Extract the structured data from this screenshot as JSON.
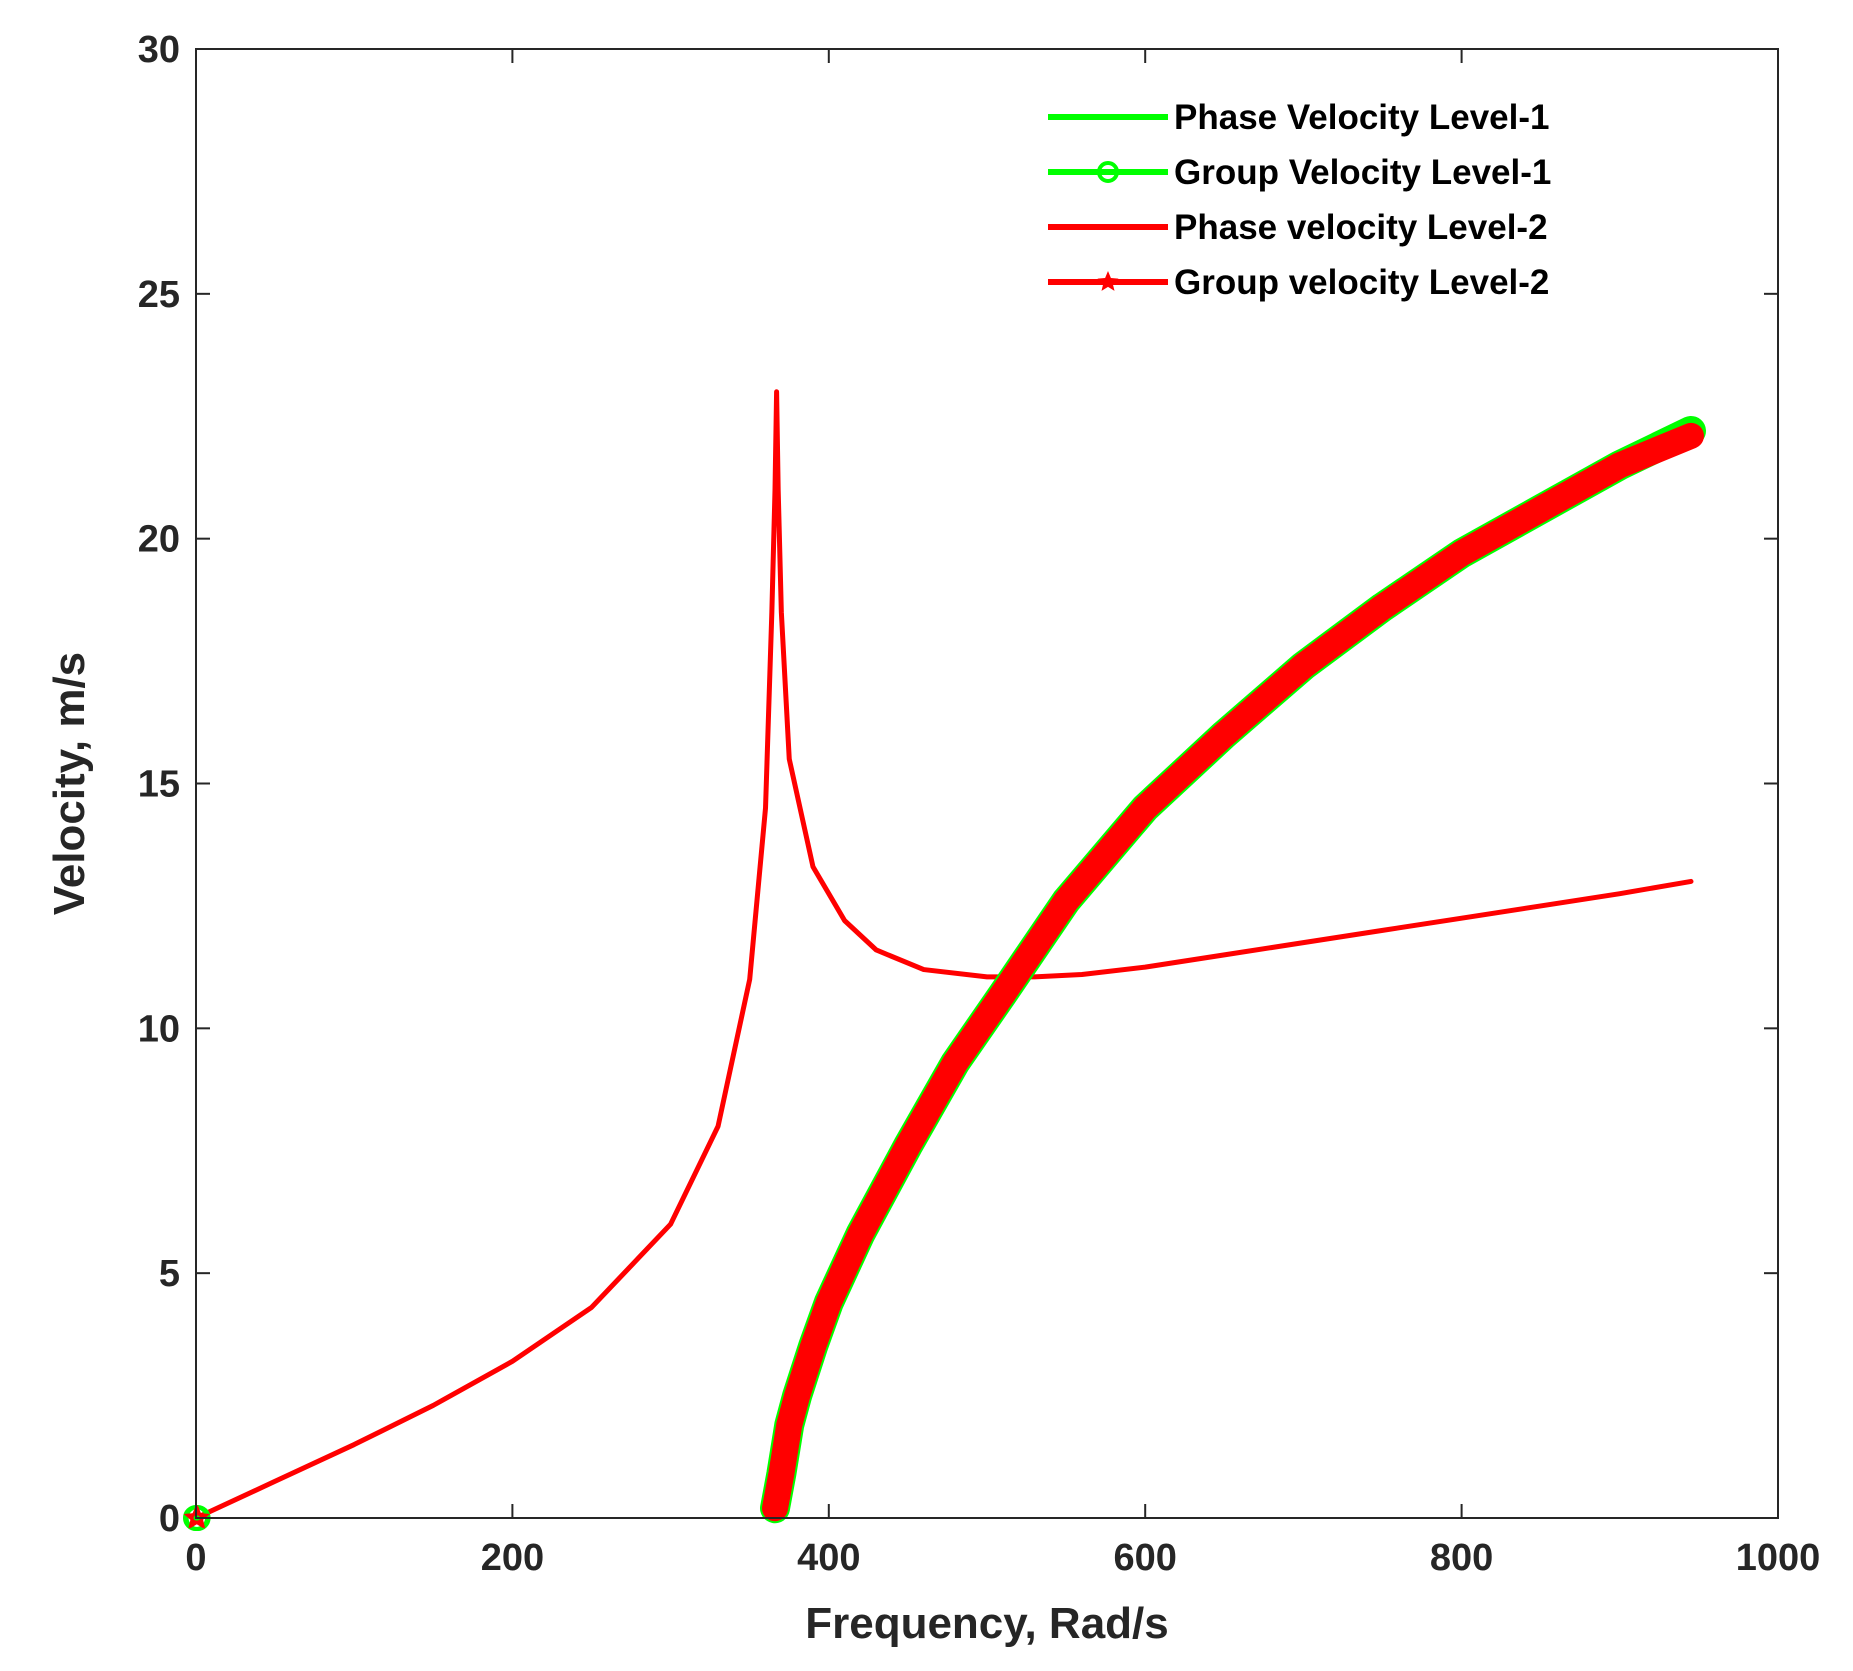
{
  "chart_data": {
    "type": "line",
    "title": "",
    "xlabel": "Frequency, Rad/s",
    "ylabel": "Velocity, m/s",
    "xlim": [
      0,
      1000
    ],
    "ylim": [
      0,
      30
    ],
    "xticks": [
      0,
      200,
      400,
      600,
      800,
      1000
    ],
    "yticks": [
      0,
      5,
      10,
      15,
      20,
      25,
      30
    ],
    "xtick_labels": [
      "0",
      "200",
      "400",
      "600",
      "800",
      "1000"
    ],
    "ytick_labels": [
      "0",
      "5",
      "10",
      "15",
      "20",
      "25",
      "30"
    ],
    "grid": false,
    "legend_position": "top-right",
    "series": [
      {
        "name": "Phase Velocity Level-1",
        "color": "#00ff00",
        "marker": "none",
        "x": [
          0,
          1
        ],
        "y": [
          0,
          0
        ]
      },
      {
        "name": "Group Velocity Level-1",
        "color": "#00ff00",
        "marker": "circle",
        "x": [
          0,
          1,
          366,
          370,
          375,
          380,
          390,
          400,
          420,
          450,
          480,
          510,
          550,
          600,
          650,
          700,
          750,
          800,
          850,
          900,
          945
        ],
        "y": [
          0,
          0,
          0.2,
          0.9,
          1.9,
          2.5,
          3.5,
          4.4,
          5.8,
          7.6,
          9.3,
          10.7,
          12.6,
          14.5,
          16.0,
          17.4,
          18.6,
          19.7,
          20.6,
          21.5,
          22.2
        ]
      },
      {
        "name": "Phase velocity Level-2",
        "color": "#ff0000",
        "marker": "none",
        "x": [
          0,
          50,
          100,
          150,
          200,
          250,
          300,
          330,
          350,
          360,
          364,
          366,
          367,
          368,
          370,
          375,
          390,
          410,
          430,
          460,
          500,
          530,
          560,
          600,
          650,
          700,
          750,
          800,
          850,
          900,
          945
        ],
        "y": [
          0,
          0.75,
          1.5,
          2.3,
          3.2,
          4.3,
          6.0,
          8.0,
          11.0,
          14.5,
          18.5,
          21.0,
          23.0,
          21.0,
          18.5,
          15.5,
          13.3,
          12.2,
          11.6,
          11.2,
          11.05,
          11.05,
          11.1,
          11.25,
          11.5,
          11.75,
          12.0,
          12.25,
          12.5,
          12.75,
          13.0
        ]
      },
      {
        "name": "Group velocity Level-2",
        "color": "#ff0000",
        "marker": "star",
        "x": [
          0,
          1,
          366,
          370,
          375,
          380,
          390,
          400,
          420,
          450,
          480,
          510,
          550,
          600,
          650,
          700,
          750,
          800,
          850,
          900,
          945
        ],
        "y": [
          0,
          0,
          0.2,
          0.9,
          1.9,
          2.5,
          3.5,
          4.4,
          5.8,
          7.6,
          9.3,
          10.7,
          12.6,
          14.5,
          16.0,
          17.4,
          18.6,
          19.7,
          20.6,
          21.5,
          22.1
        ]
      }
    ]
  }
}
